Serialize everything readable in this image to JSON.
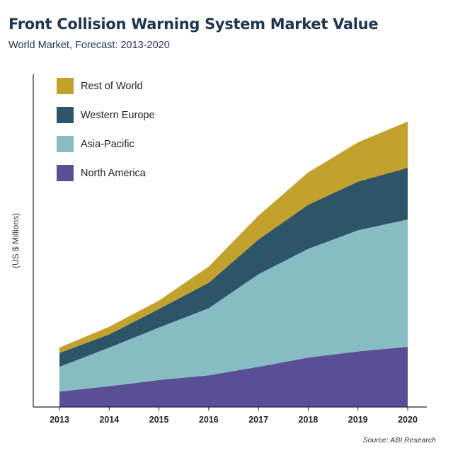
{
  "chart_data": {
    "type": "area",
    "stacked": true,
    "title": "Front Collision Warning System Market Value",
    "subtitle": "World Market, Forecast: 2013-2020",
    "ylabel": "(US $ Millions)",
    "source": "Source: ABI Research",
    "x": [
      "2013",
      "2014",
      "2015",
      "2016",
      "2017",
      "2018",
      "2019",
      "2020"
    ],
    "ylim": [
      0,
      400
    ],
    "grid": false,
    "legend_position": "top-left",
    "series": [
      {
        "name": "North America",
        "color": "#5a4e96",
        "values": [
          20,
          27,
          35,
          41,
          52,
          64,
          72,
          78
        ]
      },
      {
        "name": "Asia-Pacific",
        "color": "#86bcc2",
        "values": [
          32,
          50,
          68,
          87,
          120,
          141,
          157,
          165
        ]
      },
      {
        "name": "Western Europe",
        "color": "#2e5469",
        "values": [
          18,
          17,
          24,
          33,
          45,
          57,
          63,
          67
        ]
      },
      {
        "name": "Rest of World",
        "color": "#c2a12c",
        "values": [
          7,
          10,
          11,
          21,
          31,
          42,
          51,
          60
        ]
      }
    ],
    "legend_order": [
      "Rest of World",
      "Western Europe",
      "Asia-Pacific",
      "North America"
    ]
  }
}
